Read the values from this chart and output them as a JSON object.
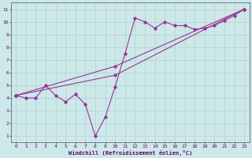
{
  "xlabel": "Windchill (Refroidissement éolien,°C)",
  "bg_color": "#cce8e8",
  "line_color": "#993399",
  "xlim": [
    -0.5,
    23.5
  ],
  "ylim": [
    0.5,
    11.5
  ],
  "xticks": [
    0,
    1,
    2,
    3,
    4,
    5,
    6,
    7,
    8,
    9,
    10,
    11,
    12,
    13,
    14,
    15,
    16,
    17,
    18,
    19,
    20,
    21,
    22,
    23
  ],
  "yticks": [
    1,
    2,
    3,
    4,
    5,
    6,
    7,
    8,
    9,
    10,
    11
  ],
  "line1_x": [
    0,
    1,
    2,
    3,
    4,
    5,
    6,
    7,
    8,
    9,
    10,
    11,
    12,
    13,
    14,
    15,
    16,
    17,
    18,
    19,
    20,
    21,
    22,
    23
  ],
  "line1_y": [
    4.2,
    4.0,
    4.0,
    5.0,
    4.2,
    3.7,
    4.3,
    3.5,
    1.0,
    2.5,
    4.9,
    7.5,
    10.3,
    10.0,
    9.5,
    10.0,
    9.7,
    9.7,
    9.4,
    9.5,
    9.7,
    10.1,
    10.5,
    11.0
  ],
  "line2_x": [
    0,
    10,
    23
  ],
  "line2_y": [
    4.2,
    6.5,
    11.0
  ],
  "line3_x": [
    0,
    10,
    23
  ],
  "line3_y": [
    4.2,
    5.8,
    11.0
  ]
}
